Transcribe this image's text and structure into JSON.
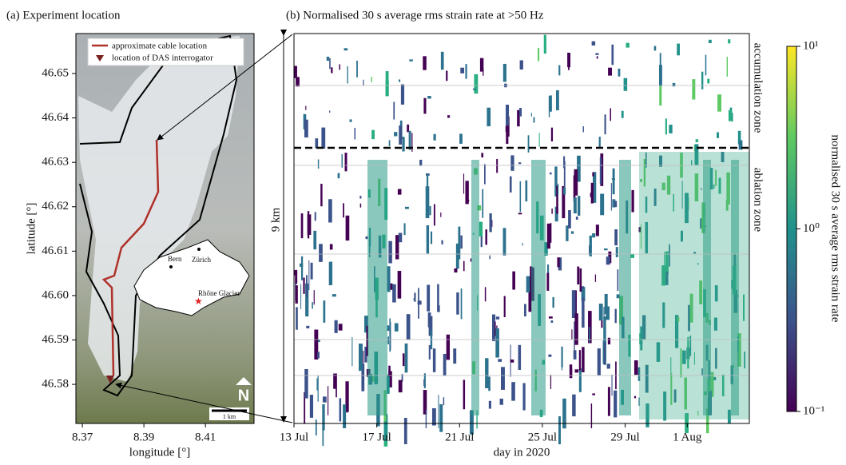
{
  "chart_data": [
    {
      "type": "map",
      "title": "(a) Experiment location",
      "xlabel": "longitude [°]",
      "ylabel": "latitude [°]",
      "xlim": [
        8.3679,
        8.4258
      ],
      "ylim": [
        46.5712,
        46.659
      ],
      "xticks": [
        8.37,
        8.39,
        8.41
      ],
      "yticks": [
        46.58,
        46.59,
        {
          "value": 46.6,
          "label": "46.60"
        },
        46.61,
        46.62,
        46.63,
        46.64,
        46.65
      ],
      "legend": [
        "approximate cable location",
        "location of DAS interrogator"
      ],
      "annotations": [
        "Bern",
        "Zürich",
        "Rhône Glacier",
        "1 km",
        "N"
      ]
    },
    {
      "type": "heatmap",
      "title": "(b) Normalised 30 s average rms strain rate at >50 Hz",
      "xlabel": "day in 2020",
      "xlim": [
        "2020-07-13",
        "2020-08-04"
      ],
      "xticks": [
        {
          "value": "2020-07-13",
          "label": "13 Jul"
        },
        {
          "value": "2020-07-17",
          "label": "17 Jul"
        },
        {
          "value": "2020-07-21",
          "label": "21 Jul"
        },
        {
          "value": "2020-07-25",
          "label": "25 Jul"
        },
        {
          "value": "2020-07-29",
          "label": "29 Jul"
        },
        {
          "value": "2020-08-01",
          "label": "1 Aug"
        }
      ],
      "annotations": [
        "9 km",
        "accumulation zone",
        "ablation zone"
      ],
      "colorbar": {
        "label": "normalised 30 s average rms strain rate",
        "log": true,
        "clim": [
          0.1,
          10
        ],
        "ticks": [
          {
            "value": 0.1,
            "label": "10⁻¹"
          },
          {
            "value": 1,
            "label": "10⁰"
          },
          {
            "value": 10,
            "label": "10¹"
          }
        ]
      }
    }
  ]
}
